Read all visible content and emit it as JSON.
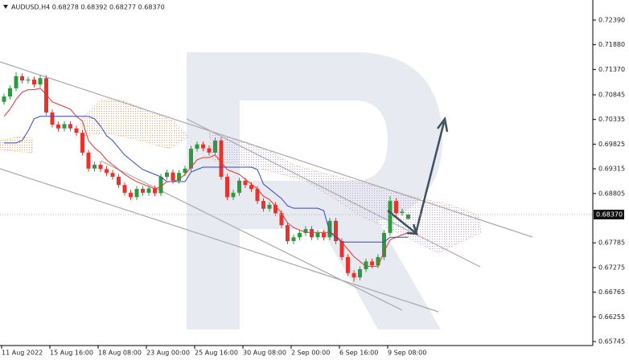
{
  "chart_data": {
    "type": "candlestick",
    "title": "AUDUSD,H4  0.68278 0.68392 0.68277 0.68370",
    "categories": [
      "11 Aug 2022",
      null,
      null,
      null,
      null,
      null,
      null,
      null,
      "15 Aug 16:00",
      null,
      null,
      null,
      null,
      null,
      null,
      null,
      "18 Aug 08:00",
      null,
      null,
      null,
      null,
      null,
      null,
      null,
      "23 Aug 00:00",
      null,
      null,
      null,
      null,
      null,
      null,
      null,
      "25 Aug 16:00",
      null,
      null,
      null,
      null,
      null,
      null,
      null,
      "30 Aug 08:00",
      null,
      null,
      null,
      null,
      null,
      null,
      null,
      "2 Sep 00:00",
      null,
      null,
      null,
      null,
      null,
      null,
      null,
      "6 Sep 16:00",
      null,
      null,
      null,
      null,
      null,
      null,
      null,
      "9 Sep 08:00",
      null,
      null,
      null
    ],
    "open": [
      0.707,
      0.7081,
      0.7098,
      0.7123,
      0.7114,
      0.7116,
      0.7106,
      0.7119,
      0.7048,
      0.7023,
      0.7015,
      0.7024,
      0.7015,
      0.7006,
      0.6965,
      0.6932,
      0.694,
      0.6931,
      0.6923,
      0.6915,
      0.6898,
      0.6882,
      0.6873,
      0.689,
      0.6882,
      0.6891,
      0.6881,
      0.6915,
      0.6924,
      0.6907,
      0.6923,
      0.6932,
      0.6973,
      0.6982,
      0.6974,
      0.6965,
      0.699,
      0.6915,
      0.6873,
      0.6882,
      0.6907,
      0.6898,
      0.689,
      0.6865,
      0.6849,
      0.6857,
      0.684,
      0.6815,
      0.6782,
      0.679,
      0.6799,
      0.6807,
      0.679,
      0.6799,
      0.679,
      0.6824,
      0.6782,
      0.6749,
      0.6716,
      0.6707,
      0.6724,
      0.674,
      0.6732,
      0.6749,
      0.6799,
      0.6865,
      0.684,
      0.68278
    ],
    "high": [
      0.7087,
      0.7104,
      0.7131,
      0.7129,
      0.7122,
      0.7122,
      0.7125,
      0.7125,
      0.7054,
      0.7029,
      0.703,
      0.703,
      0.7021,
      0.7012,
      0.6971,
      0.6946,
      0.6946,
      0.6937,
      0.6929,
      0.6921,
      0.6904,
      0.6888,
      0.6896,
      0.6896,
      0.6897,
      0.6897,
      0.6921,
      0.693,
      0.693,
      0.6929,
      0.6938,
      0.6979,
      0.6988,
      0.6988,
      0.698,
      0.6996,
      0.6996,
      0.6921,
      0.6888,
      0.6913,
      0.6913,
      0.6904,
      0.6896,
      0.6871,
      0.6863,
      0.6863,
      0.6846,
      0.6821,
      0.6796,
      0.6805,
      0.6813,
      0.6813,
      0.6805,
      0.6805,
      0.683,
      0.683,
      0.6788,
      0.6755,
      0.6722,
      0.673,
      0.6746,
      0.6746,
      0.6755,
      0.6805,
      0.6875,
      0.6871,
      0.6849,
      0.68392
    ],
    "low": [
      0.7064,
      0.7075,
      0.7092,
      0.7108,
      0.7108,
      0.71,
      0.71,
      0.7042,
      0.7017,
      0.7009,
      0.7009,
      0.7009,
      0.7,
      0.6959,
      0.6926,
      0.6926,
      0.6925,
      0.6917,
      0.6909,
      0.6892,
      0.6876,
      0.6867,
      0.6867,
      0.6876,
      0.6876,
      0.6875,
      0.6875,
      0.6909,
      0.6901,
      0.6901,
      0.6917,
      0.6926,
      0.6967,
      0.6968,
      0.6959,
      0.6959,
      0.6909,
      0.6867,
      0.6867,
      0.6876,
      0.6892,
      0.6884,
      0.6859,
      0.6843,
      0.6843,
      0.6834,
      0.6809,
      0.6776,
      0.6776,
      0.6784,
      0.6793,
      0.6784,
      0.6784,
      0.6784,
      0.6784,
      0.6776,
      0.6743,
      0.671,
      0.6698,
      0.6701,
      0.6718,
      0.6726,
      0.6726,
      0.6743,
      0.6793,
      0.6834,
      0.6834,
      0.68277
    ],
    "close": [
      0.7081,
      0.7098,
      0.7123,
      0.7114,
      0.7116,
      0.7106,
      0.7119,
      0.7048,
      0.7023,
      0.7015,
      0.7024,
      0.7015,
      0.7006,
      0.6965,
      0.6932,
      0.694,
      0.6931,
      0.6923,
      0.6915,
      0.6898,
      0.6882,
      0.6873,
      0.689,
      0.6882,
      0.6891,
      0.6881,
      0.6915,
      0.6924,
      0.6907,
      0.6923,
      0.6932,
      0.6973,
      0.6982,
      0.6974,
      0.6965,
      0.699,
      0.6915,
      0.6873,
      0.6882,
      0.6907,
      0.6898,
      0.689,
      0.6865,
      0.6849,
      0.6857,
      0.684,
      0.6815,
      0.6782,
      0.679,
      0.6799,
      0.6807,
      0.679,
      0.6799,
      0.679,
      0.6824,
      0.6782,
      0.6749,
      0.6716,
      0.6707,
      0.6724,
      0.674,
      0.6732,
      0.6749,
      0.6799,
      0.6865,
      0.684,
      0.6843,
      0.6837
    ],
    "up_color": "#2e9a3e",
    "down_color": "#e8322d",
    "lines": [
      {
        "color": "#e8322d",
        "values": [
          0.704,
          0.7055,
          0.7075,
          0.709,
          0.7095,
          0.7095,
          0.7098,
          0.7085,
          0.707,
          0.7065,
          0.706,
          0.7055,
          0.704,
          0.703,
          0.699,
          0.6975,
          0.6965,
          0.695,
          0.694,
          0.693,
          0.692,
          0.6912,
          0.6905,
          0.69,
          0.6895,
          0.689,
          0.6895,
          0.6905,
          0.6905,
          0.691,
          0.692,
          0.6935,
          0.695,
          0.6955,
          0.6955,
          0.696,
          0.6945,
          0.693,
          0.6925,
          0.692,
          0.691,
          0.69,
          0.689,
          0.6875,
          0.6868,
          0.6855,
          0.684,
          0.682,
          0.681,
          0.6805,
          0.68,
          0.68,
          0.68,
          0.68,
          0.68,
          0.6795,
          0.678,
          0.6765,
          0.675,
          0.674,
          0.673,
          0.673,
          0.673,
          0.676,
          0.6785,
          0.679,
          0.6795,
          0.68
        ]
      },
      {
        "color": "#3344cc",
        "values": [
          0.6985,
          0.6985,
          0.6985,
          0.699,
          0.701,
          0.7035,
          0.704,
          0.704,
          0.704,
          0.704,
          0.704,
          0.704,
          0.704,
          0.704,
          0.704,
          0.7035,
          0.702,
          0.7,
          0.699,
          0.6975,
          0.696,
          0.695,
          0.694,
          0.693,
          0.6925,
          0.692,
          0.6915,
          0.6905,
          0.6905,
          0.6905,
          0.6905,
          0.6925,
          0.693,
          0.6935,
          0.6935,
          0.6935,
          0.6935,
          0.6935,
          0.6935,
          0.6935,
          0.6935,
          0.6935,
          0.693,
          0.69,
          0.689,
          0.688,
          0.687,
          0.6855,
          0.685,
          0.685,
          0.685,
          0.685,
          0.685,
          0.6845,
          0.68,
          0.679,
          0.678,
          0.678,
          0.678,
          0.678,
          0.678,
          0.678,
          0.678,
          0.678,
          0.679,
          0.679,
          0.679,
          0.679
        ]
      }
    ],
    "ylim": [
      0.65662,
      0.72805
    ],
    "yticks": [
      {
        "value": 0.7239,
        "label": "0.72390"
      },
      {
        "value": 0.7188,
        "label": "0.71880"
      },
      {
        "value": 0.7137,
        "label": "0.71370"
      },
      {
        "value": 0.70845,
        "label": "0.70845"
      },
      {
        "value": 0.70335,
        "label": "0.70335"
      },
      {
        "value": 0.69825,
        "label": "0.69825"
      },
      {
        "value": 0.69315,
        "label": "0.69315"
      },
      {
        "value": 0.68805,
        "label": "0.68805"
      },
      {
        "value": 0.67785,
        "label": "0.67785"
      },
      {
        "value": 0.67275,
        "label": "0.67275"
      },
      {
        "value": 0.66765,
        "label": "0.66765"
      },
      {
        "value": 0.66255,
        "label": "0.66255"
      },
      {
        "value": 0.65745,
        "label": "0.65745"
      }
    ],
    "current_price": {
      "value": 0.6837,
      "label": "0.68370"
    }
  }
}
